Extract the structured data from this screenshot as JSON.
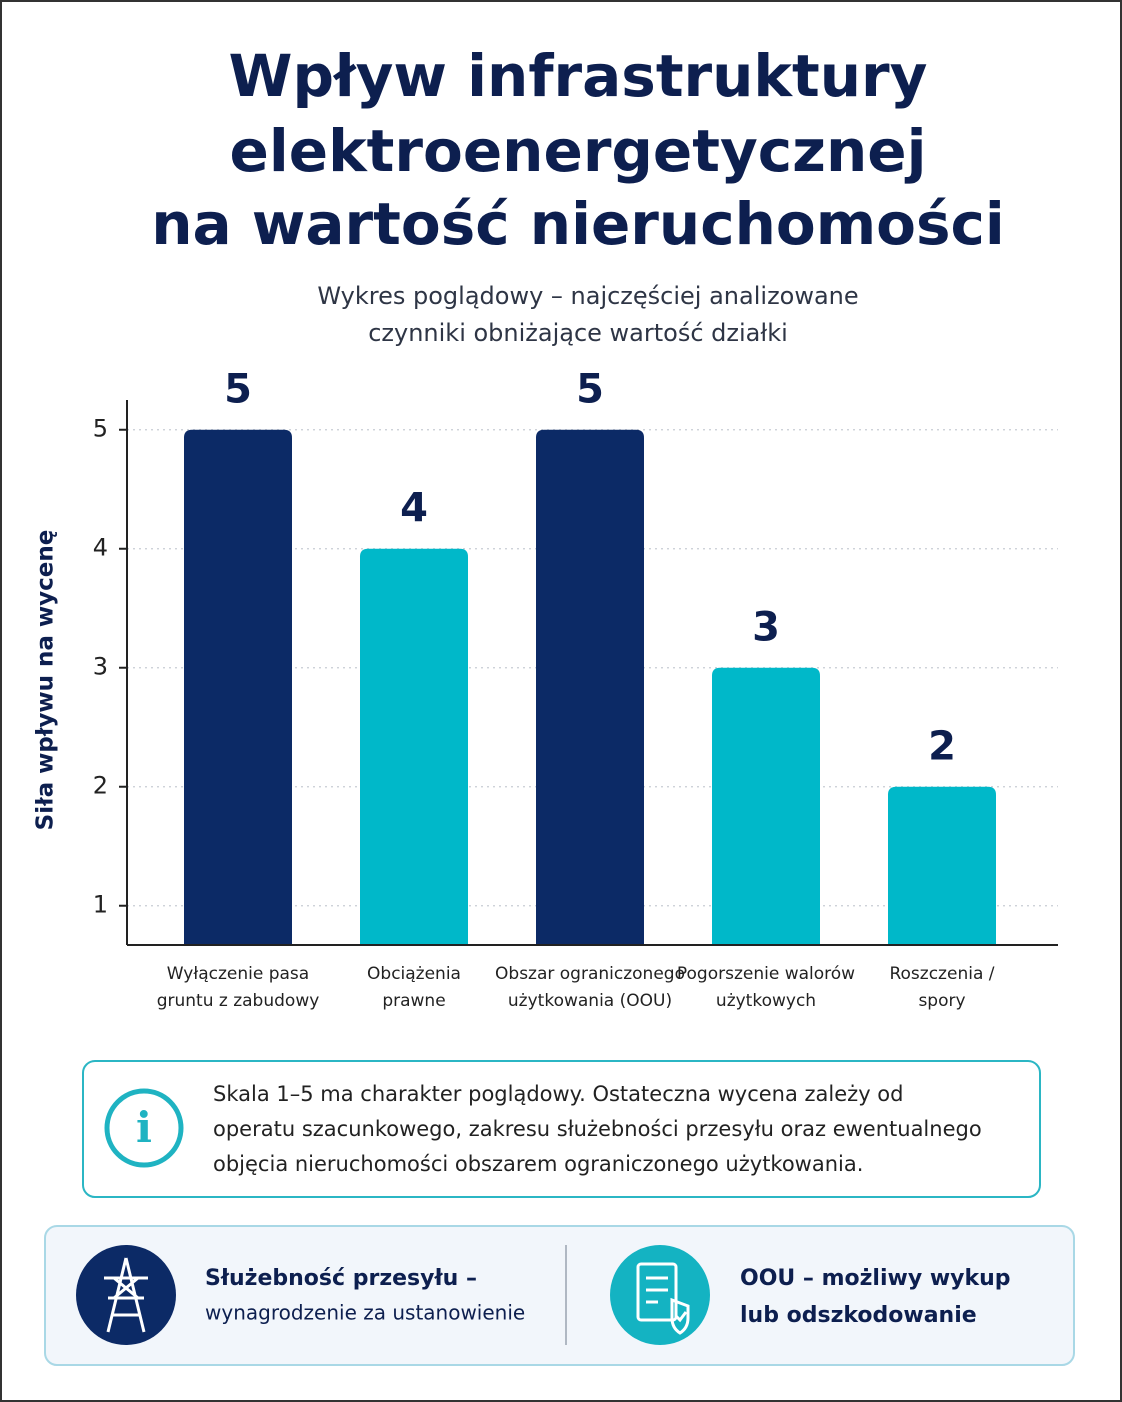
{
  "chart_data": {
    "type": "bar",
    "title": [
      "Wpływ infrastruktury",
      "elektroenergetycznej",
      "na wartość nieruchomości"
    ],
    "subtitle": [
      "Wykres poglądowy – najczęściej analizowane",
      "czynniki obniżające wartość działki"
    ],
    "y_label": "Siła wpływu na wycenę",
    "categories": [
      [
        "Wyłączenie pasa",
        "gruntu z zabudowy"
      ],
      [
        "Obciążenia",
        "prawne"
      ],
      [
        "Obszar ograniczonego",
        "użytkowania (OOU)"
      ],
      [
        "Pogorszenie walorów",
        "użytkowych"
      ],
      [
        "Roszczenia /",
        "spory"
      ]
    ],
    "values": [
      5,
      4,
      5,
      3,
      2
    ],
    "colors": [
      "#0c2a66",
      "#00b8c9",
      "#0c2a66",
      "#00b8c9",
      "#00b8c9"
    ],
    "ylim": [
      0.67,
      5.25
    ],
    "yticks": [
      1,
      2,
      3,
      4,
      5
    ],
    "grid": true
  },
  "info_box": {
    "lines": [
      "Skala 1–5 ma charakter poglądowy. Ostateczna wycena zależy od",
      "operatu szacunkowego, zakresu służebności przesyłu oraz ewentualnego",
      "objęcia nieruchomości obszarem ograniczonego użytkowania."
    ]
  },
  "features": [
    {
      "lines": [
        "Służebność przesyłu –",
        "wynagrodzenie za ustanowienie"
      ]
    },
    {
      "lines": [
        "OOU – możliwy wykup",
        "lub odszkodowanie"
      ]
    }
  ]
}
